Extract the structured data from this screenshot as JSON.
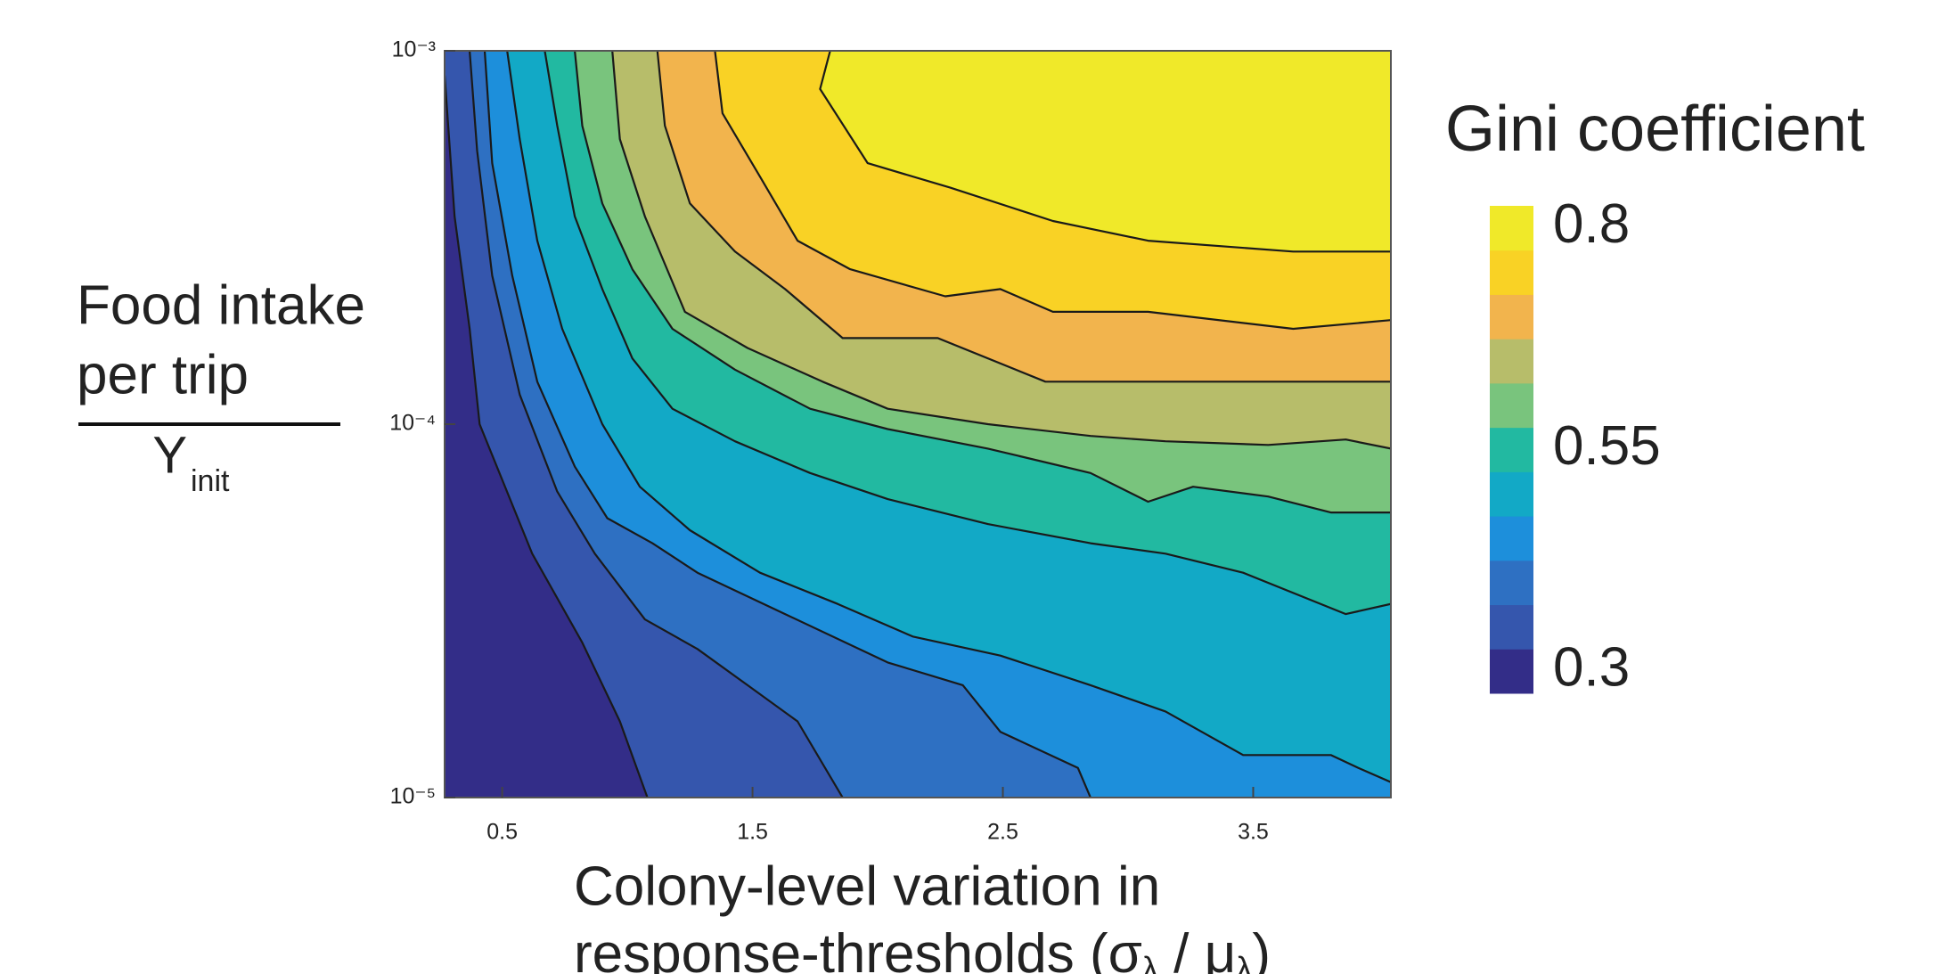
{
  "chart_data": {
    "type": "contour",
    "colorbar_title": "Gini coefficient",
    "ylabel": {
      "numerator": [
        "Food intake",
        "per trip"
      ],
      "denominator": "Υ",
      "denominator_sub": "init"
    },
    "xlabel": {
      "line1": "Colony-level variation in",
      "line2": [
        "response-thresholds (σ",
        "λ",
        " / μ",
        "λ",
        ")"
      ]
    },
    "xlim": [
      0.27,
      4.05
    ],
    "xticks": [
      0.5,
      1.5,
      2.5,
      3.5
    ],
    "ylim": [
      1e-05,
      0.001
    ],
    "yscale": "log",
    "yticks": [
      {
        "value": 0.001,
        "label": "10⁻³"
      },
      {
        "value": 0.0001,
        "label": "10⁻⁴"
      },
      {
        "value": 1e-05,
        "label": "10⁻⁵"
      }
    ],
    "colors": [
      "#332d88",
      "#3556ad",
      "#2e70c2",
      "#1d8fdb",
      "#12a9c6",
      "#22b9a1",
      "#79c47d",
      "#b7bd6a",
      "#f2b44d",
      "#f9d225",
      "#f0e929"
    ],
    "clim": [
      0.275,
      0.825
    ],
    "cticks": [
      0.3,
      0.55,
      0.8
    ],
    "line_color": "#1a1a1a",
    "contours": [
      {
        "level": 0.325,
        "x": [
          0.27,
          0.31,
          0.37,
          0.41,
          0.62,
          0.82,
          0.97,
          1.08
        ],
        "y": [
          0.00086,
          0.00036,
          0.00018,
          0.0001,
          4.5e-05,
          2.6e-05,
          1.6e-05,
          1e-05
        ]
      },
      {
        "level": 0.375,
        "x": [
          0.37,
          0.4,
          0.46,
          0.57,
          0.72,
          0.87,
          1.07,
          1.28,
          1.48,
          1.68,
          1.86
        ],
        "y": [
          0.001,
          0.00054,
          0.00025,
          0.00012,
          6.6e-05,
          4.5e-05,
          3e-05,
          2.5e-05,
          2e-05,
          1.6e-05,
          1e-05
        ]
      },
      {
        "level": 0.425,
        "x": [
          0.43,
          0.46,
          0.54,
          0.64,
          0.79,
          0.92,
          1.1,
          1.28,
          1.63,
          2.04,
          2.34,
          2.49,
          2.8,
          2.85
        ],
        "y": [
          0.001,
          0.0005,
          0.00025,
          0.00013,
          7.7e-05,
          5.6e-05,
          4.8e-05,
          4e-05,
          3.1e-05,
          2.3e-05,
          2e-05,
          1.5e-05,
          1.2e-05,
          1e-05
        ]
      },
      {
        "level": 0.475,
        "x": [
          0.52,
          0.57,
          0.64,
          0.74,
          0.9,
          1.05,
          1.25,
          1.53,
          1.84,
          2.14,
          2.49,
          2.85,
          3.15,
          3.46,
          3.81,
          3.92,
          4.05
        ],
        "y": [
          0.001,
          0.00058,
          0.00031,
          0.00018,
          0.0001,
          6.8e-05,
          5.2e-05,
          4e-05,
          3.3e-05,
          2.7e-05,
          2.4e-05,
          2e-05,
          1.7e-05,
          1.3e-05,
          1.3e-05,
          1.2e-05,
          1.1e-05
        ]
      },
      {
        "level": 0.525,
        "x": [
          0.67,
          0.72,
          0.79,
          0.9,
          1.02,
          1.18,
          1.43,
          1.73,
          2.04,
          2.44,
          2.85,
          3.15,
          3.46,
          3.87,
          4.05
        ],
        "y": [
          0.001,
          0.00063,
          0.00036,
          0.00023,
          0.00015,
          0.00011,
          9e-05,
          7.4e-05,
          6.3e-05,
          5.4e-05,
          4.8e-05,
          4.5e-05,
          4e-05,
          3.1e-05,
          3.3e-05
        ]
      },
      {
        "level": 0.575,
        "x": [
          0.79,
          0.82,
          0.9,
          1.02,
          1.18,
          1.43,
          1.73,
          2.04,
          2.44,
          2.85,
          3.08,
          3.26,
          3.56,
          3.81,
          4.05
        ],
        "y": [
          0.001,
          0.00063,
          0.00039,
          0.00026,
          0.00018,
          0.00014,
          0.00011,
          9.7e-05,
          8.6e-05,
          7.4e-05,
          6.2e-05,
          6.8e-05,
          6.4e-05,
          5.8e-05,
          5.8e-05
        ]
      },
      {
        "level": 0.625,
        "x": [
          0.94,
          0.97,
          1.07,
          1.23,
          1.48,
          1.78,
          2.04,
          2.44,
          2.85,
          3.15,
          3.56,
          3.87,
          4.05
        ],
        "y": [
          0.001,
          0.00058,
          0.00036,
          0.0002,
          0.00016,
          0.00013,
          0.00011,
          0.0001,
          9.3e-05,
          9e-05,
          8.8e-05,
          9.1e-05,
          8.6e-05
        ]
      },
      {
        "level": 0.675,
        "x": [
          1.12,
          1.15,
          1.25,
          1.43,
          1.63,
          1.86,
          2.24,
          2.67,
          3.15,
          3.66,
          4.05
        ],
        "y": [
          0.001,
          0.00063,
          0.00039,
          0.00029,
          0.00023,
          0.00017,
          0.00017,
          0.00013,
          0.00013,
          0.00013,
          0.00013
        ]
      },
      {
        "level": 0.725,
        "x": [
          1.35,
          1.38,
          1.53,
          1.68,
          1.89,
          2.27,
          2.49,
          2.7,
          3.08,
          3.66,
          4.05
        ],
        "y": [
          0.001,
          0.00068,
          0.00046,
          0.00031,
          0.00026,
          0.00022,
          0.00023,
          0.0002,
          0.0002,
          0.00018,
          0.00019
        ]
      },
      {
        "level": 0.775,
        "x": [
          1.81,
          1.77,
          1.96,
          2.29,
          2.7,
          3.08,
          3.66,
          4.05
        ],
        "y": [
          0.001,
          0.00079,
          0.0005,
          0.00043,
          0.00035,
          0.00031,
          0.00029,
          0.00029
        ]
      }
    ]
  }
}
